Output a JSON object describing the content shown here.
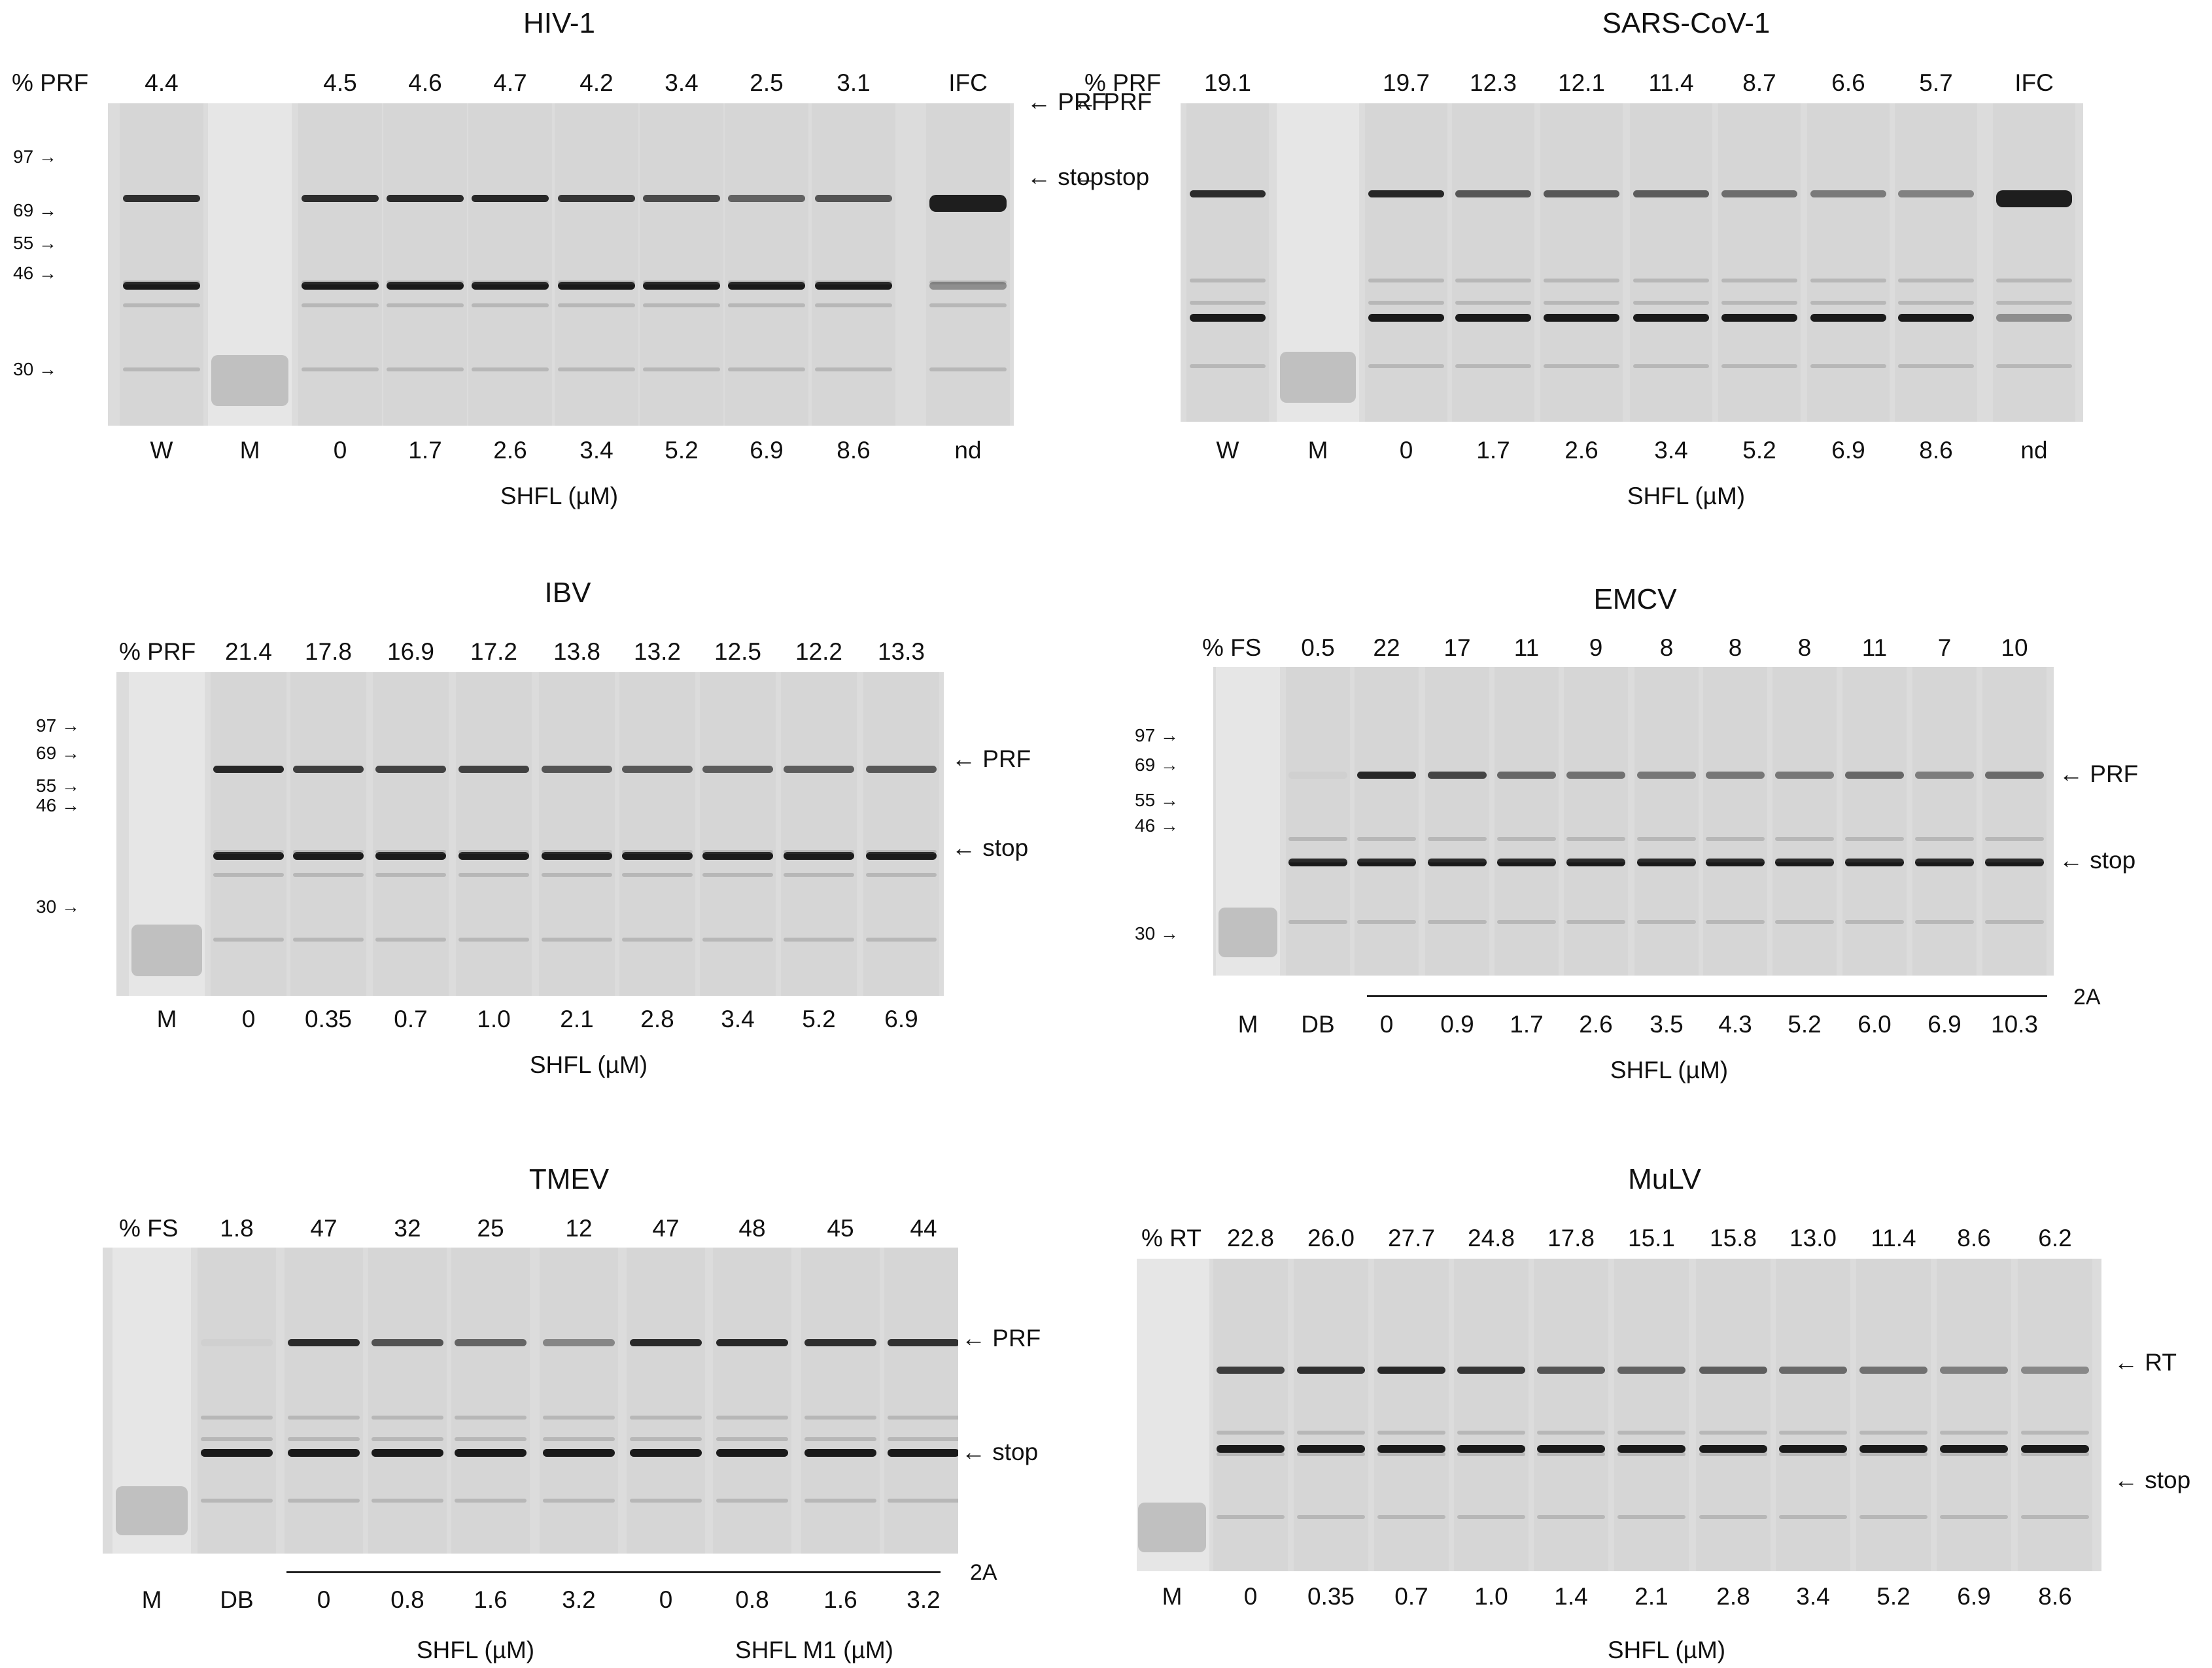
{
  "panels": [
    {
      "id": "hiv1",
      "title": "HIV-1",
      "row_label": "% PRF",
      "top_values": [
        "4.4",
        "",
        "4.5",
        "4.6",
        "4.7",
        "4.2",
        "3.4",
        "2.5",
        "3.1",
        "IFC"
      ],
      "bottom_labels": [
        "W",
        "M",
        "0",
        "1.7",
        "2.6",
        "3.4",
        "5.2",
        "6.9",
        "8.6",
        "nd"
      ],
      "axis_label": "SHFL (µM)",
      "markers": [
        "97",
        "69",
        "55",
        "46",
        "30"
      ],
      "band_labels": [
        "PRF",
        "stop"
      ]
    },
    {
      "id": "sars",
      "title": "SARS-CoV-1",
      "row_label": "% PRF",
      "top_values": [
        "19.1",
        "",
        "19.7",
        "12.3",
        "12.1",
        "11.4",
        "8.7",
        "6.6",
        "5.7",
        "IFC"
      ],
      "bottom_labels": [
        "W",
        "M",
        "0",
        "1.7",
        "2.6",
        "3.4",
        "5.2",
        "6.9",
        "8.6",
        "nd"
      ],
      "axis_label": "SHFL (µM)",
      "band_labels": [
        "PRF",
        "stop"
      ]
    },
    {
      "id": "ibv",
      "title": "IBV",
      "row_label": "% PRF",
      "top_values": [
        "",
        "21.4",
        "17.8",
        "16.9",
        "17.2",
        "13.8",
        "13.2",
        "12.5",
        "12.2",
        "13.3"
      ],
      "bottom_labels": [
        "M",
        "0",
        "0.35",
        "0.7",
        "1.0",
        "2.1",
        "2.8",
        "3.4",
        "5.2",
        "6.9"
      ],
      "axis_label": "SHFL (µM)",
      "markers": [
        "97",
        "69",
        "55",
        "46",
        "30"
      ],
      "band_labels": [
        "PRF",
        "stop"
      ]
    },
    {
      "id": "emcv",
      "title": "EMCV",
      "row_label": "% FS",
      "top_values": [
        "",
        "0.5",
        "22",
        "17",
        "11",
        "9",
        "8",
        "8",
        "8",
        "11",
        "7",
        "10"
      ],
      "bottom_labels": [
        "M",
        "DB",
        "0",
        "0.9",
        "1.7",
        "2.6",
        "3.5",
        "4.3",
        "5.2",
        "6.0",
        "6.9",
        "10.3"
      ],
      "axis_label": "SHFL (µM)",
      "markers": [
        "97",
        "69",
        "55",
        "46",
        "30"
      ],
      "band_labels": [
        "PRF",
        "stop"
      ],
      "bracket_label": "2A"
    },
    {
      "id": "tmev",
      "title": "TMEV",
      "row_label": "% FS",
      "top_values": [
        "",
        "1.8",
        "47",
        "32",
        "25",
        "12",
        "47",
        "48",
        "45",
        "44"
      ],
      "bottom_labels": [
        "M",
        "DB",
        "0",
        "0.8",
        "1.6",
        "3.2",
        "0",
        "0.8",
        "1.6",
        "3.2"
      ],
      "axis_label": "SHFL (µM)",
      "axis_label_2": "SHFL M1 (µM)",
      "band_labels": [
        "PRF",
        "stop"
      ],
      "bracket_label": "2A"
    },
    {
      "id": "mulv",
      "title": "MuLV",
      "row_label": "% RT",
      "top_values": [
        "",
        "22.8",
        "26.0",
        "27.7",
        "24.8",
        "17.8",
        "15.1",
        "15.8",
        "13.0",
        "11.4",
        "8.6",
        "6.2"
      ],
      "bottom_labels": [
        "M",
        "0",
        "0.35",
        "0.7",
        "1.0",
        "1.4",
        "2.1",
        "2.8",
        "3.4",
        "5.2",
        "6.9",
        "8.6"
      ],
      "axis_label": "SHFL (µM)",
      "band_labels": [
        "RT",
        "stop"
      ]
    }
  ]
}
